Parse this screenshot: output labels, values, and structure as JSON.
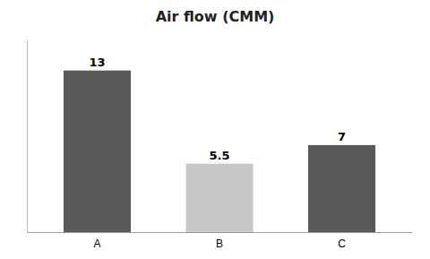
{
  "chart_data": {
    "type": "bar",
    "title": "Air flow (CMM)",
    "categories": [
      "A",
      "B",
      "C"
    ],
    "values": [
      13,
      5.5,
      7
    ],
    "colors": [
      "#595959",
      "#c8c8c8",
      "#595959"
    ],
    "ylim": [
      0,
      15.5
    ],
    "grid": false,
    "data_labels": true,
    "tick_labels": "x"
  }
}
